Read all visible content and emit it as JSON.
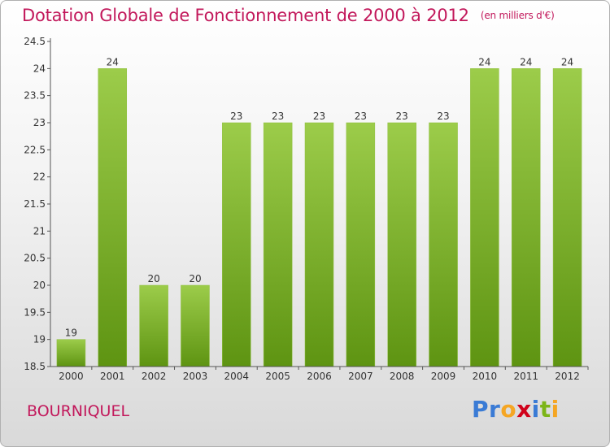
{
  "header": {
    "title": "Dotation Globale de Fonctionnement de 2000 à 2012",
    "unit": "(en milliers d'€)"
  },
  "commune": "BOURNIQUEL",
  "logo": {
    "text": "Proxiti",
    "letter_colors": [
      "#3a7bd5",
      "#3a7bd5",
      "#f5a623",
      "#d0021b",
      "#3a7bd5",
      "#7cb518",
      "#f5a623"
    ]
  },
  "colors": {
    "bar_light": "#9ccc4a",
    "bar_dark": "#5e9412",
    "axis": "#555555",
    "text": "#333333",
    "accent": "#c2185b"
  },
  "chart_data": {
    "type": "bar",
    "title": "Dotation Globale de Fonctionnement de 2000 à 2012",
    "unit": "(en milliers d'€)",
    "categories": [
      "2000",
      "2001",
      "2002",
      "2003",
      "2004",
      "2005",
      "2006",
      "2007",
      "2008",
      "2009",
      "2010",
      "2011",
      "2012"
    ],
    "values": [
      19,
      24,
      20,
      20,
      23,
      23,
      23,
      23,
      23,
      23,
      24,
      24,
      24
    ],
    "ylim": [
      18.5,
      24.5
    ],
    "yticks": [
      "18.5",
      "19",
      "19.5",
      "20",
      "20.5",
      "21",
      "21.5",
      "22",
      "22.5",
      "23",
      "23.5",
      "24",
      "24.5"
    ],
    "grid": false,
    "legend": "none"
  }
}
